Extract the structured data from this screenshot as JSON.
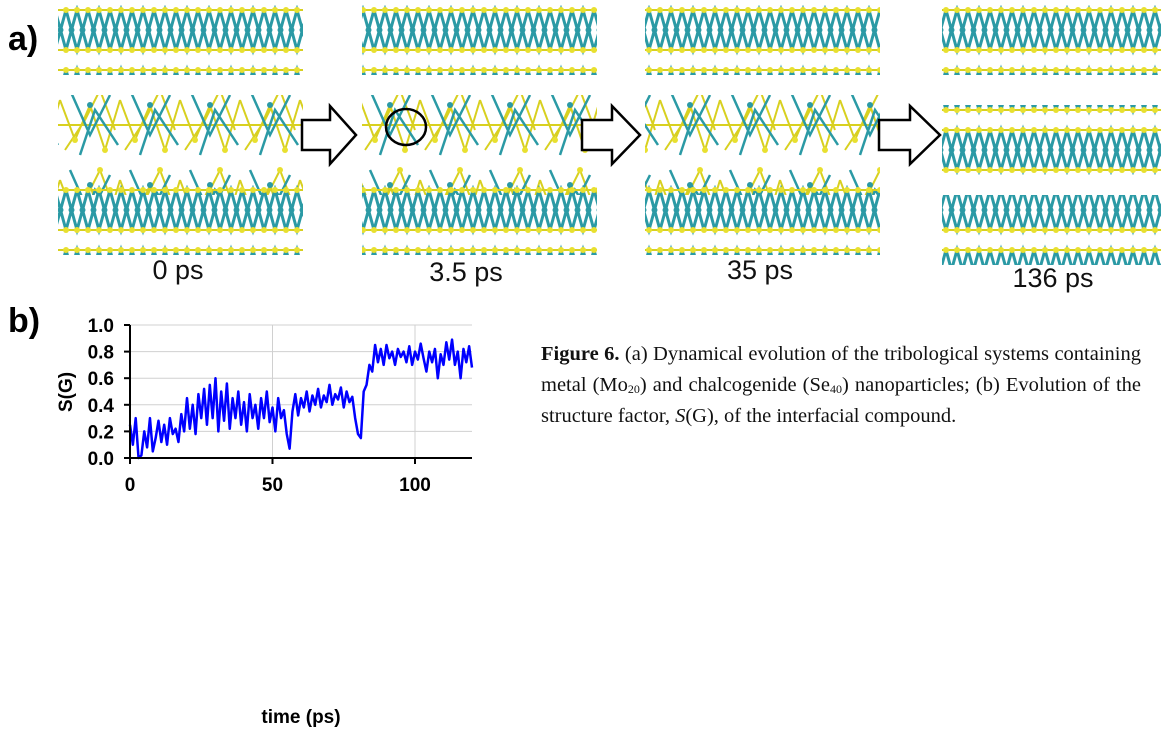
{
  "panel_a": {
    "label": "a)",
    "snapshots": [
      "0 ps",
      "3.5 ps",
      "35 ps",
      "136 ps"
    ]
  },
  "chart_data": {
    "type": "line",
    "panel_label": "b)",
    "x_label": "time (ps)",
    "y_label": "S(G)",
    "color": "#0000ff",
    "grid": true,
    "xlim": [
      0,
      120
    ],
    "ylim": [
      0,
      1
    ],
    "xticks": [
      0,
      50,
      100
    ],
    "yticks": [
      {
        "value": 0,
        "label": "0.0"
      },
      0.2,
      0.4,
      0.6,
      0.8,
      {
        "value": 1,
        "label": "1.0"
      }
    ],
    "x": [
      0,
      1,
      2,
      3,
      4,
      5,
      6,
      7,
      8,
      9,
      10,
      11,
      12,
      13,
      14,
      15,
      16,
      17,
      18,
      19,
      20,
      21,
      22,
      23,
      24,
      25,
      26,
      27,
      28,
      29,
      30,
      31,
      32,
      33,
      34,
      35,
      36,
      37,
      38,
      39,
      40,
      41,
      42,
      43,
      44,
      45,
      46,
      47,
      48,
      49,
      50,
      51,
      52,
      53,
      54,
      55,
      56,
      57,
      58,
      59,
      60,
      61,
      62,
      63,
      64,
      65,
      66,
      67,
      68,
      69,
      70,
      71,
      72,
      73,
      74,
      75,
      76,
      77,
      78,
      79,
      80,
      81,
      82,
      83,
      84,
      85,
      86,
      87,
      88,
      89,
      90,
      91,
      92,
      93,
      94,
      95,
      96,
      97,
      98,
      99,
      100,
      101,
      102,
      103,
      104,
      105,
      106,
      107,
      108,
      109,
      110,
      111,
      112,
      113,
      114,
      115,
      116,
      117,
      118,
      119,
      120
    ],
    "values": [
      0.25,
      0.1,
      0.3,
      0.0,
      0.02,
      0.2,
      0.08,
      0.3,
      0.05,
      0.15,
      0.28,
      0.12,
      0.25,
      0.1,
      0.3,
      0.18,
      0.22,
      0.12,
      0.33,
      0.2,
      0.45,
      0.22,
      0.4,
      0.18,
      0.48,
      0.3,
      0.52,
      0.25,
      0.55,
      0.3,
      0.6,
      0.2,
      0.5,
      0.28,
      0.56,
      0.22,
      0.45,
      0.3,
      0.5,
      0.25,
      0.42,
      0.2,
      0.48,
      0.3,
      0.4,
      0.22,
      0.45,
      0.3,
      0.5,
      0.27,
      0.38,
      0.2,
      0.45,
      0.3,
      0.36,
      0.18,
      0.07,
      0.35,
      0.48,
      0.32,
      0.45,
      0.38,
      0.5,
      0.35,
      0.47,
      0.4,
      0.52,
      0.38,
      0.47,
      0.42,
      0.55,
      0.4,
      0.48,
      0.44,
      0.53,
      0.38,
      0.5,
      0.42,
      0.46,
      0.3,
      0.18,
      0.15,
      0.5,
      0.55,
      0.7,
      0.65,
      0.85,
      0.72,
      0.82,
      0.7,
      0.85,
      0.75,
      0.8,
      0.7,
      0.82,
      0.76,
      0.8,
      0.72,
      0.84,
      0.7,
      0.8,
      0.74,
      0.86,
      0.75,
      0.65,
      0.8,
      0.72,
      0.82,
      0.6,
      0.78,
      0.7,
      0.87,
      0.74,
      0.89,
      0.7,
      0.8,
      0.6,
      0.82,
      0.72,
      0.84,
      0.68
    ]
  },
  "caption": {
    "label": "Figure 6.",
    "parts": [
      " (a) Dynamical evolution of the tribological systems containing metal (Mo",
      "20",
      ") and chalcogenide (Se",
      "40",
      ") nanoparticles; (b) Evolution of the structure factor, ",
      "S",
      "(G), of the interfacial compound."
    ]
  }
}
